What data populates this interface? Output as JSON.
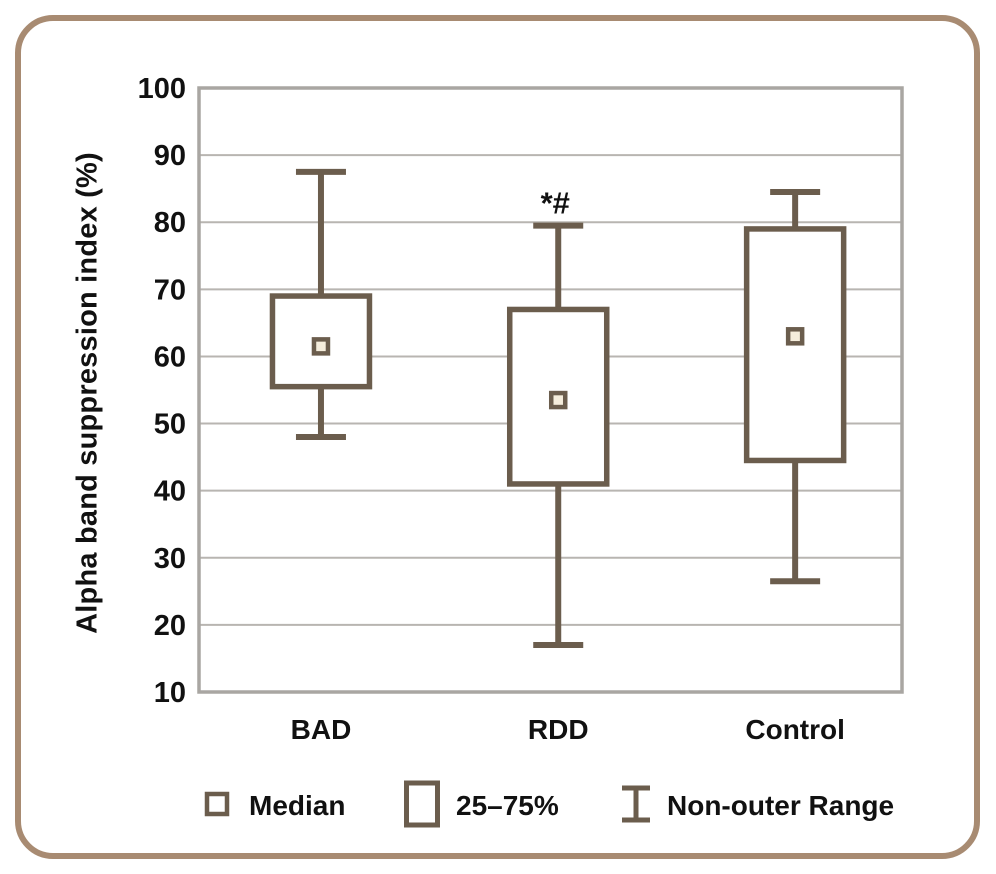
{
  "chart_data": {
    "type": "box",
    "title": "",
    "xlabel": "",
    "ylabel": "Alpha band suppression index (%)",
    "ylim": [
      10,
      100
    ],
    "yticks": [
      100,
      90,
      80,
      70,
      60,
      50,
      40,
      30,
      20,
      10
    ],
    "grid": true,
    "legend_position": "bottom",
    "categories": [
      "BAD",
      "RDD",
      "Control"
    ],
    "boxes": [
      {
        "category": "BAD",
        "whisker_low": 48,
        "q1": 55.5,
        "median": 61.5,
        "q3": 69,
        "whisker_high": 87.5,
        "annotation": ""
      },
      {
        "category": "RDD",
        "whisker_low": 17,
        "q1": 41,
        "median": 53.5,
        "q3": 67,
        "whisker_high": 79.5,
        "annotation": "*#"
      },
      {
        "category": "Control",
        "whisker_low": 26.5,
        "q1": 44.5,
        "median": 63,
        "q3": 79,
        "whisker_high": 84.5,
        "annotation": ""
      }
    ],
    "legend": [
      {
        "label": "Median",
        "marker": "median-square-icon"
      },
      {
        "label": "25–75%",
        "marker": "iqr-box-icon"
      },
      {
        "label": "Non-outer Range",
        "marker": "whisker-ibeam-icon"
      }
    ]
  },
  "colors": {
    "box_stroke": "#6b5d4d",
    "median_fill": "#f5eddc",
    "gridline": "#b8b5b1",
    "plot_border": "#a9a6a2",
    "card_border": "#a88b72",
    "text": "#111111",
    "annotation": "#111111"
  }
}
